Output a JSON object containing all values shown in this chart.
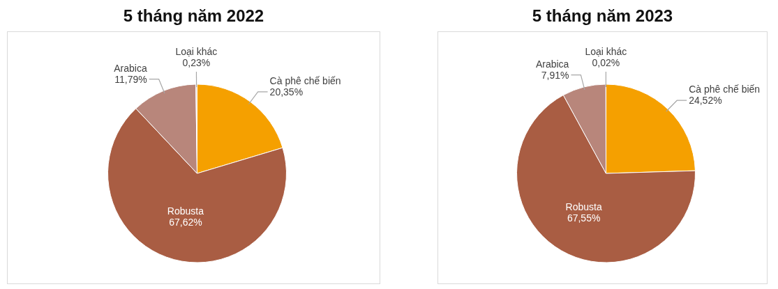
{
  "chart_data": [
    {
      "type": "pie",
      "title": "5 tháng năm 2022",
      "categories": [
        "Cà phê chế biến",
        "Robusta",
        "Arabica",
        "Loại khác"
      ],
      "values": [
        20.35,
        67.62,
        11.79,
        0.23
      ],
      "colors": [
        "#f5a000",
        "#a95d43",
        "#b8867b",
        "#e3cfc8"
      ],
      "value_labels": [
        "20,35%",
        "67,62%",
        "11,79%",
        "0,23%"
      ]
    },
    {
      "type": "pie",
      "title": "5 tháng năm 2023",
      "categories": [
        "Cà phê chế biến",
        "Robusta",
        "Arabica",
        "Loại khác"
      ],
      "values": [
        24.52,
        67.55,
        7.91,
        0.02
      ],
      "colors": [
        "#f5a000",
        "#a95d43",
        "#b8867b",
        "#e3cfc8"
      ],
      "value_labels": [
        "24,52%",
        "67,55%",
        "7,91%",
        "0,02%"
      ]
    }
  ]
}
